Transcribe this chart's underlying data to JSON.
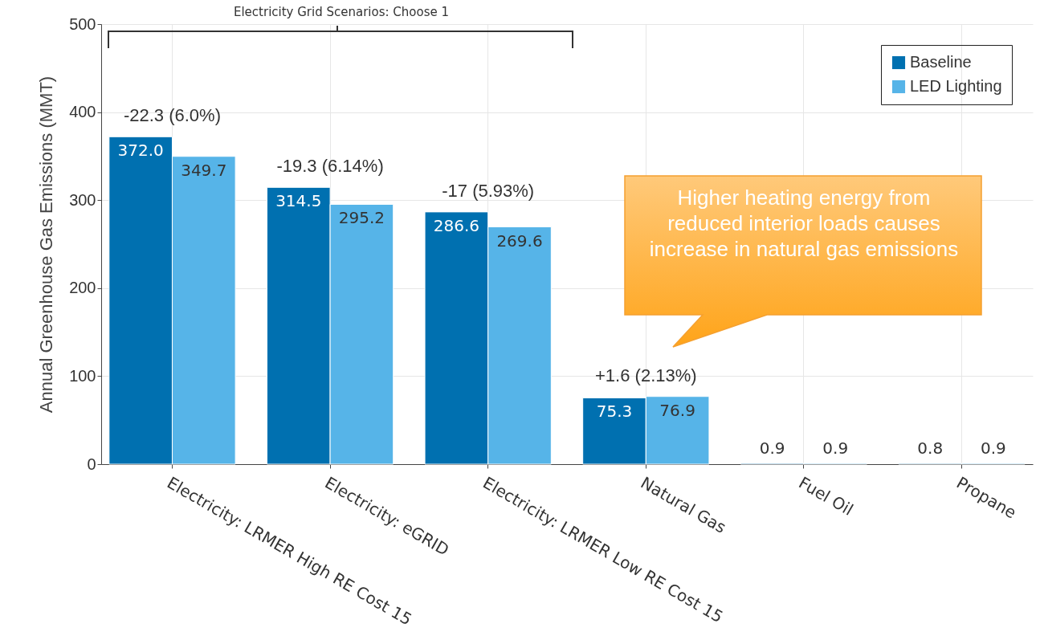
{
  "chart_data": {
    "type": "bar",
    "ylabel": "Annual Greenhouse Gas Emissions (MMT)",
    "categories": [
      "Electricity: LRMER High RE Cost 15",
      "Electricity: eGRID",
      "Electricity: LRMER Low RE Cost 15",
      "Natural Gas",
      "Fuel Oil",
      "Propane"
    ],
    "series": [
      {
        "name": "Baseline",
        "color": "#0070b0",
        "values": [
          372.0,
          314.5,
          286.6,
          75.3,
          0.9,
          0.8
        ],
        "value_labels": [
          "372.0",
          "314.5",
          "286.6",
          "75.3",
          "0.9",
          "0.8"
        ]
      },
      {
        "name": "LED Lighting",
        "color": "#56b4e8",
        "values": [
          349.7,
          295.2,
          269.6,
          76.9,
          0.9,
          0.9
        ],
        "value_labels": [
          "349.7",
          "295.2",
          "269.6",
          "76.9",
          "0.9",
          "0.9"
        ]
      }
    ],
    "ylim": [
      0,
      500
    ],
    "yticks": [
      0,
      100,
      200,
      300,
      400,
      500
    ],
    "grid": true,
    "legend": "top right",
    "annotations": [
      {
        "text": "-22.3 (6.0%)",
        "x": "Electricity: LRMER High RE Cost 15",
        "y": 372.0
      },
      {
        "text": "-19.3 (6.14%)",
        "x": "Electricity: eGRID",
        "y": 314.5
      },
      {
        "text": "-17 (5.93%)",
        "x": "Electricity: LRMER Low RE Cost 15",
        "y": 286.6
      },
      {
        "text": "+1.6 (2.13%)",
        "x": "Natural Gas",
        "y": 76.9
      },
      "Electricity Grid Scenarios: Choose 1",
      "Higher heating energy from reduced interior loads causes increase in natural gas emissions"
    ]
  }
}
